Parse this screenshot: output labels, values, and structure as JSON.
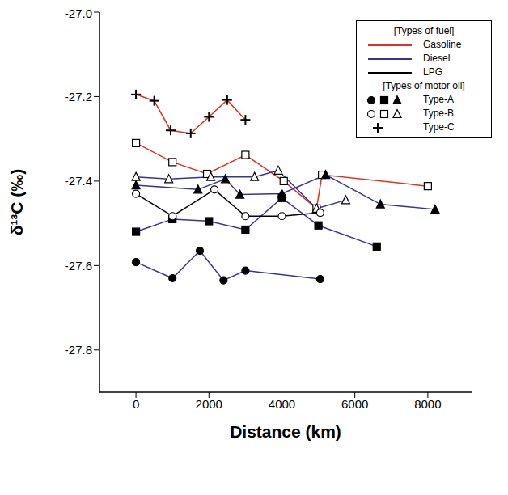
{
  "chart_data": {
    "type": "line",
    "xlabel": "Distance (km)",
    "ylabel": "δ¹³C (‰)",
    "xlim": [
      -1000,
      9200
    ],
    "xticks": [
      0,
      2000,
      4000,
      6000,
      8000
    ],
    "ylim": [
      -27.9,
      -27.0
    ],
    "yticks": [
      {
        "value": -27.8,
        "label": "-27.8"
      },
      {
        "value": -27.6,
        "label": "-27.6"
      },
      {
        "value": -27.4,
        "label": "-27.4"
      },
      {
        "value": -27.2,
        "label": "-27.2"
      },
      {
        "value": -27.0,
        "label": "-27.0"
      }
    ],
    "grid": false,
    "legend": "upper right",
    "legend_items": {
      "fuel_title": "[Types of fuel]",
      "fuel": [
        {
          "label": "Gasoline",
          "color": "#e03020"
        },
        {
          "label": "Diesel",
          "color": "#34349a"
        },
        {
          "label": "LPG",
          "color": "#000000"
        }
      ],
      "oil_title": "[Types of motor oil]",
      "oil": [
        {
          "label": "Type-A",
          "markers": [
            "circle",
            "square",
            "triangle"
          ]
        },
        {
          "label": "Type-B",
          "markers": [
            "open_circle",
            "open_square",
            "open_triangle"
          ]
        },
        {
          "label": "Type-C",
          "markers": [
            "plus"
          ]
        }
      ]
    },
    "series": [
      {
        "fuel": "Gasoline",
        "oil": "Type-C",
        "color": "#e03020",
        "marker": "plus",
        "x": [
          0,
          500,
          950,
          1500,
          2000,
          2500,
          3000
        ],
        "values": [
          -27.195,
          -27.21,
          -27.28,
          -27.287,
          -27.248,
          -27.208,
          -27.255
        ]
      },
      {
        "fuel": "Gasoline",
        "oil": "Type-B",
        "color": "#e03020",
        "marker": "open_square",
        "x": [
          0,
          1000,
          1950,
          3000,
          4050,
          4950,
          5100,
          8000
        ],
        "values": [
          -27.31,
          -27.355,
          -27.383,
          -27.338,
          -27.4,
          -27.465,
          -27.385,
          -27.412
        ]
      },
      {
        "fuel": "Diesel",
        "oil": "Type-B",
        "color": "#34349a",
        "marker": "open_triangle",
        "x": [
          0,
          900,
          2050,
          3250,
          3900,
          4950,
          5750
        ],
        "values": [
          -27.39,
          -27.395,
          -27.39,
          -27.39,
          -27.375,
          -27.465,
          -27.445
        ]
      },
      {
        "fuel": "Diesel",
        "oil": "Type-A",
        "color": "#34349a",
        "marker": "circle",
        "x": [
          0,
          1000,
          1750,
          2400,
          3000,
          5050
        ],
        "values": [
          -27.592,
          -27.63,
          -27.565,
          -27.635,
          -27.612,
          -27.632
        ]
      },
      {
        "fuel": "Diesel",
        "oil": "Type-A",
        "color": "#34349a",
        "marker": "square",
        "x": [
          0,
          1000,
          2000,
          3000,
          4000,
          5000,
          6600
        ],
        "values": [
          -27.52,
          -27.49,
          -27.495,
          -27.515,
          -27.44,
          -27.505,
          -27.555
        ]
      },
      {
        "fuel": "Diesel",
        "oil": "Type-A",
        "color": "#34349a",
        "marker": "triangle",
        "x": [
          0,
          1700,
          2450,
          2850,
          4000,
          5200,
          6700,
          8200
        ],
        "values": [
          -27.41,
          -27.42,
          -27.395,
          -27.432,
          -27.43,
          -27.385,
          -27.455,
          -27.467
        ]
      },
      {
        "fuel": "LPG",
        "oil": "Type-B",
        "color": "#000000",
        "marker": "open_circle",
        "x": [
          0,
          1000,
          2150,
          3000,
          4000,
          5050
        ],
        "values": [
          -27.43,
          -27.483,
          -27.42,
          -27.483,
          -27.483,
          -27.475
        ]
      }
    ]
  }
}
